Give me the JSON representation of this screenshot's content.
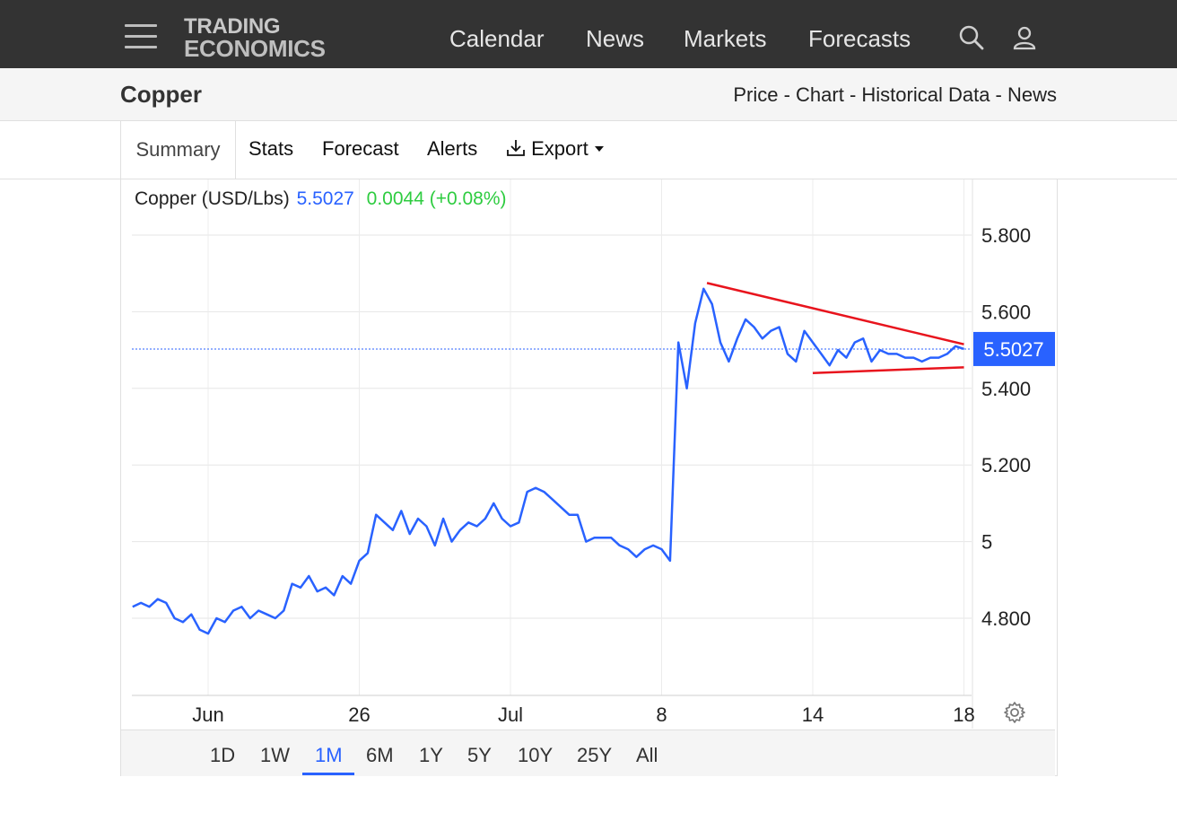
{
  "nav": {
    "logo_line1": "TRADING",
    "logo_line2": "ECONOMICS",
    "links": [
      "Calendar",
      "News",
      "Markets",
      "Forecasts"
    ]
  },
  "header": {
    "title": "Copper",
    "links": "Price - Chart - Historical Data - News"
  },
  "tabs": {
    "summary": "Summary",
    "stats": "Stats",
    "forecast": "Forecast",
    "alerts": "Alerts",
    "export": "Export"
  },
  "quote": {
    "name": "Copper (USD/Lbs)",
    "price": "5.5027",
    "change": "0.0044 (+0.08%)"
  },
  "ranges": [
    "1D",
    "1W",
    "1M",
    "6M",
    "1Y",
    "5Y",
    "10Y",
    "25Y",
    "All"
  ],
  "active_range": "1M",
  "colors": {
    "line": "#2962ff",
    "trend": "#e8141d",
    "positive": "#2ecc40",
    "accent": "#2962ff"
  },
  "chart_data": {
    "type": "line",
    "ytick_labels": [
      "5.800",
      "5.600",
      "5.400",
      "5.200",
      "5",
      "4.800"
    ],
    "yticks": [
      5.8,
      5.6,
      5.4,
      5.2,
      5.0,
      4.8
    ],
    "ylim": [
      4.6,
      5.87
    ],
    "xtick_labels": [
      "Jun",
      "26",
      "Jul",
      "8",
      "14",
      "18"
    ],
    "xtick_days": [
      3,
      12,
      21,
      30,
      39,
      48
    ],
    "xlim": [
      -1.5,
      48.5
    ],
    "last_value_label": "5.5027",
    "last_value": 5.5027,
    "series": [
      {
        "points": [
          [
            -1.5,
            4.83
          ],
          [
            -1.0,
            4.84
          ],
          [
            -0.5,
            4.83
          ],
          [
            0.0,
            4.85
          ],
          [
            0.5,
            4.84
          ],
          [
            1.0,
            4.8
          ],
          [
            1.5,
            4.79
          ],
          [
            2.0,
            4.81
          ],
          [
            2.5,
            4.77
          ],
          [
            3.0,
            4.76
          ],
          [
            3.5,
            4.8
          ],
          [
            4.0,
            4.79
          ],
          [
            4.5,
            4.82
          ],
          [
            5.0,
            4.83
          ],
          [
            5.5,
            4.8
          ],
          [
            6.0,
            4.82
          ],
          [
            6.5,
            4.81
          ],
          [
            7.0,
            4.8
          ],
          [
            7.5,
            4.82
          ],
          [
            8.0,
            4.89
          ],
          [
            8.5,
            4.88
          ],
          [
            9.0,
            4.91
          ],
          [
            9.5,
            4.87
          ],
          [
            10.0,
            4.88
          ],
          [
            10.5,
            4.86
          ],
          [
            11.0,
            4.91
          ],
          [
            11.5,
            4.89
          ],
          [
            12.0,
            4.95
          ],
          [
            12.5,
            4.97
          ],
          [
            13.0,
            5.07
          ],
          [
            13.5,
            5.05
          ],
          [
            14.0,
            5.03
          ],
          [
            14.5,
            5.08
          ],
          [
            15.0,
            5.02
          ],
          [
            15.5,
            5.06
          ],
          [
            16.0,
            5.04
          ],
          [
            16.5,
            4.99
          ],
          [
            17.0,
            5.06
          ],
          [
            17.5,
            5.0
          ],
          [
            18.0,
            5.03
          ],
          [
            18.5,
            5.05
          ],
          [
            19.0,
            5.04
          ],
          [
            19.5,
            5.06
          ],
          [
            20.0,
            5.1
          ],
          [
            20.5,
            5.06
          ],
          [
            21.0,
            5.04
          ],
          [
            21.5,
            5.05
          ],
          [
            22.0,
            5.13
          ],
          [
            22.5,
            5.14
          ],
          [
            23.0,
            5.13
          ],
          [
            23.5,
            5.11
          ],
          [
            24.0,
            5.09
          ],
          [
            24.5,
            5.07
          ],
          [
            25.0,
            5.07
          ],
          [
            25.5,
            5.0
          ],
          [
            26.0,
            5.01
          ],
          [
            26.5,
            5.01
          ],
          [
            27.0,
            5.01
          ],
          [
            27.5,
            4.99
          ],
          [
            28.0,
            4.98
          ],
          [
            28.5,
            4.96
          ],
          [
            29.0,
            4.98
          ],
          [
            29.5,
            4.99
          ],
          [
            30.0,
            4.98
          ],
          [
            30.5,
            4.95
          ],
          [
            31.0,
            5.52
          ],
          [
            31.5,
            5.4
          ],
          [
            32.0,
            5.57
          ],
          [
            32.5,
            5.66
          ],
          [
            33.0,
            5.62
          ],
          [
            33.5,
            5.52
          ],
          [
            34.0,
            5.47
          ],
          [
            34.5,
            5.53
          ],
          [
            35.0,
            5.58
          ],
          [
            35.5,
            5.56
          ],
          [
            36.0,
            5.53
          ],
          [
            36.5,
            5.55
          ],
          [
            37.0,
            5.56
          ],
          [
            37.5,
            5.49
          ],
          [
            38.0,
            5.47
          ],
          [
            38.5,
            5.55
          ],
          [
            39.0,
            5.52
          ],
          [
            39.5,
            5.49
          ],
          [
            40.0,
            5.46
          ],
          [
            40.5,
            5.5
          ],
          [
            41.0,
            5.48
          ],
          [
            41.5,
            5.52
          ],
          [
            42.0,
            5.53
          ],
          [
            42.5,
            5.47
          ],
          [
            43.0,
            5.5
          ],
          [
            43.5,
            5.49
          ],
          [
            44.0,
            5.49
          ],
          [
            44.5,
            5.48
          ],
          [
            45.0,
            5.48
          ],
          [
            45.5,
            5.47
          ],
          [
            46.0,
            5.48
          ],
          [
            46.5,
            5.48
          ],
          [
            47.0,
            5.49
          ],
          [
            47.5,
            5.51
          ],
          [
            48.0,
            5.5027
          ]
        ]
      }
    ],
    "trendlines": [
      {
        "name": "upper",
        "from": [
          32.7,
          5.675
        ],
        "to": [
          48.0,
          5.515
        ]
      },
      {
        "name": "lower",
        "from": [
          39.0,
          5.44
        ],
        "to": [
          48.0,
          5.455
        ]
      }
    ]
  }
}
